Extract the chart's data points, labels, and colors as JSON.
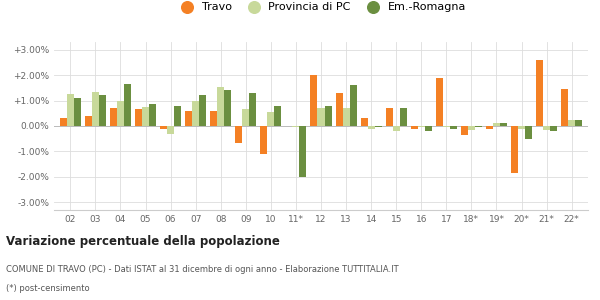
{
  "years": [
    "02",
    "03",
    "04",
    "05",
    "06",
    "07",
    "08",
    "09",
    "10",
    "11*",
    "12",
    "13",
    "14",
    "15",
    "16",
    "17",
    "18*",
    "19*",
    "20*",
    "21*",
    "22*"
  ],
  "travo": [
    0.3,
    0.4,
    0.7,
    0.65,
    -0.1,
    0.6,
    0.6,
    -0.65,
    -1.1,
    0.0,
    2.0,
    1.3,
    0.3,
    0.7,
    -0.1,
    1.9,
    -0.35,
    -0.1,
    -1.85,
    2.6,
    1.45
  ],
  "provincia": [
    1.25,
    1.35,
    1.0,
    0.75,
    -0.3,
    1.0,
    1.55,
    0.65,
    0.55,
    -0.05,
    0.7,
    0.7,
    -0.1,
    -0.2,
    -0.05,
    -0.05,
    -0.15,
    0.1,
    -0.1,
    -0.15,
    0.25
  ],
  "emilia": [
    1.1,
    1.2,
    1.65,
    0.85,
    0.8,
    1.2,
    1.4,
    1.3,
    0.8,
    -2.0,
    0.8,
    1.6,
    -0.05,
    0.7,
    -0.2,
    -0.1,
    -0.05,
    0.1,
    -0.5,
    -0.2,
    0.25
  ],
  "color_travo": "#f48024",
  "color_provincia": "#c8d99a",
  "color_emilia": "#6b8f40",
  "legend_labels": [
    "Travo",
    "Provincia di PC",
    "Em.-Romagna"
  ],
  "title": "Variazione percentuale della popolazione",
  "footer1": "COMUNE DI TRAVO (PC) - Dati ISTAT al 31 dicembre di ogni anno - Elaborazione TUTTITALIA.IT",
  "footer2": "(*) post-censimento",
  "bg_color": "#ffffff",
  "grid_color": "#dddddd",
  "ylim": [
    -3.3,
    3.3
  ],
  "yticks": [
    -3.0,
    -2.0,
    -1.0,
    0.0,
    1.0,
    2.0,
    3.0
  ],
  "ytick_labels": [
    "-3.00%",
    "-2.00%",
    "-1.00%",
    "0.00%",
    "+1.00%",
    "+2.00%",
    "+3.00%"
  ]
}
